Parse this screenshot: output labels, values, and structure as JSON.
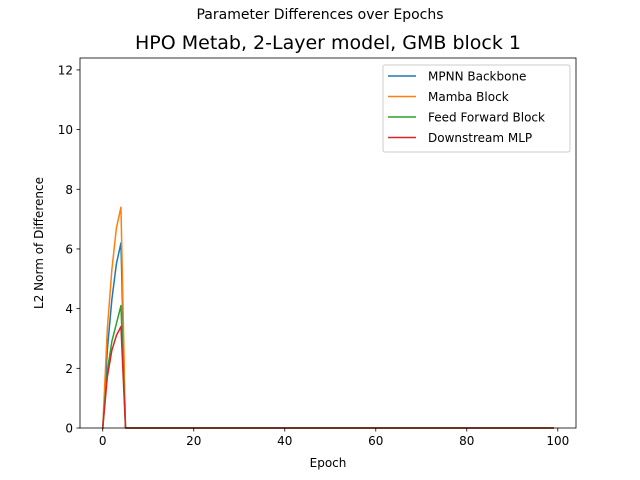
{
  "suptitle": "Parameter Differences over Epochs",
  "chart_data": {
    "type": "line",
    "title": "HPO Metab, 2-Layer model, GMB block 1",
    "xlabel": "Epoch",
    "ylabel": "L2 Norm of Difference",
    "xlim": [
      -5,
      104
    ],
    "ylim": [
      0,
      12.4
    ],
    "xticks": [
      0,
      20,
      40,
      60,
      80,
      100
    ],
    "yticks": [
      0,
      2,
      4,
      6,
      8,
      10,
      12
    ],
    "grid": false,
    "legend_position": "top-right",
    "x": [
      0,
      1,
      2,
      3,
      4,
      5,
      6,
      7,
      8,
      9,
      10,
      11,
      12,
      13,
      14,
      15,
      16,
      17,
      18,
      19,
      20,
      21,
      22,
      23,
      24,
      25,
      26,
      27,
      28,
      29,
      30,
      31,
      32,
      33,
      34,
      35,
      36,
      37,
      38,
      39,
      40,
      41,
      42,
      43,
      44,
      45,
      46,
      47,
      48,
      49,
      50,
      51,
      52,
      53,
      54,
      55,
      56,
      57,
      58,
      59,
      60,
      61,
      62,
      63,
      64,
      65,
      66,
      67,
      68,
      69,
      70,
      71,
      72,
      73,
      74,
      75,
      76,
      77,
      78,
      79,
      80,
      81,
      82,
      83,
      84,
      85,
      86,
      87,
      88,
      89,
      90,
      91,
      92,
      93,
      94,
      95,
      96,
      97,
      98,
      99
    ],
    "series": [
      {
        "name": "MPNN Backbone",
        "color": "#1f77b4",
        "values": [
          0,
          2.6,
          4.3,
          5.5,
          6.2,
          0,
          0,
          0,
          0,
          0,
          0,
          0,
          0,
          0,
          0,
          0,
          0,
          0,
          0,
          0,
          0,
          0,
          0,
          0,
          0,
          0,
          0,
          0,
          0,
          0,
          0,
          0,
          0,
          0,
          0,
          0,
          0,
          0,
          0,
          0,
          0,
          0,
          0,
          0,
          0,
          0,
          0,
          0,
          0,
          0,
          0,
          0,
          0,
          0,
          0,
          0,
          0,
          0,
          0,
          0,
          0,
          0,
          0,
          0,
          0,
          0,
          0,
          0,
          0,
          0,
          0,
          0,
          0,
          0,
          0,
          0,
          0,
          0,
          0,
          0,
          0,
          0,
          0,
          0,
          0,
          0,
          0,
          0,
          0,
          0,
          0,
          0,
          0,
          0,
          0,
          0,
          0,
          0,
          0,
          0
        ]
      },
      {
        "name": "Mamba Block",
        "color": "#ff7f0e",
        "values": [
          0,
          3.3,
          5.3,
          6.7,
          7.4,
          0,
          0,
          0,
          0,
          0,
          0,
          0,
          0,
          0,
          0,
          0,
          0,
          0,
          0,
          0,
          0,
          0,
          0,
          0,
          0,
          0,
          0,
          0,
          0,
          0,
          0,
          0,
          0,
          0,
          0,
          0,
          0,
          0,
          0,
          0,
          0,
          0,
          0,
          0,
          0,
          0,
          0,
          0,
          0,
          0,
          0,
          0,
          0,
          0,
          0,
          0,
          0,
          0,
          0,
          0,
          0,
          0,
          0,
          0,
          0,
          0,
          0,
          0,
          0,
          0,
          0,
          0,
          0,
          0,
          0,
          0,
          0,
          0,
          0,
          0,
          0,
          0,
          0,
          0,
          0,
          0,
          0,
          0,
          0,
          0,
          0,
          0,
          0,
          0,
          0,
          0,
          0,
          0,
          0,
          0
        ]
      },
      {
        "name": "Feed Forward Block",
        "color": "#2ca02c",
        "values": [
          0,
          1.9,
          2.9,
          3.5,
          4.1,
          0,
          0,
          0,
          0,
          0,
          0,
          0,
          0,
          0,
          0,
          0,
          0,
          0,
          0,
          0,
          0,
          0,
          0,
          0,
          0,
          0,
          0,
          0,
          0,
          0,
          0,
          0,
          0,
          0,
          0,
          0,
          0,
          0,
          0,
          0,
          0,
          0,
          0,
          0,
          0,
          0,
          0,
          0,
          0,
          0,
          0,
          0,
          0,
          0,
          0,
          0,
          0,
          0,
          0,
          0,
          0,
          0,
          0,
          0,
          0,
          0,
          0,
          0,
          0,
          0,
          0,
          0,
          0,
          0,
          0,
          0,
          0,
          0,
          0,
          0,
          0,
          0,
          0,
          0,
          0,
          0,
          0,
          0,
          0,
          0,
          0,
          0,
          0,
          0,
          0,
          0,
          0,
          0,
          0,
          0
        ]
      },
      {
        "name": "Downstream MLP",
        "color": "#d62728",
        "values": [
          0,
          1.7,
          2.6,
          3.1,
          3.4,
          0,
          0,
          0,
          0,
          0,
          0,
          0,
          0,
          0,
          0,
          0,
          0,
          0,
          0,
          0,
          0,
          0,
          0,
          0,
          0,
          0,
          0,
          0,
          0,
          0,
          0,
          0,
          0,
          0,
          0,
          0,
          0,
          0,
          0,
          0,
          0,
          0,
          0,
          0,
          0,
          0,
          0,
          0,
          0,
          0,
          0,
          0,
          0,
          0,
          0,
          0,
          0,
          0,
          0,
          0,
          0,
          0,
          0,
          0,
          0,
          0,
          0,
          0,
          0,
          0,
          0,
          0,
          0,
          0,
          0,
          0,
          0,
          0,
          0,
          0,
          0,
          0,
          0,
          0,
          0,
          0,
          0,
          0,
          0,
          0,
          0,
          0,
          0,
          0,
          0,
          0,
          0,
          0,
          0,
          0
        ]
      }
    ]
  }
}
